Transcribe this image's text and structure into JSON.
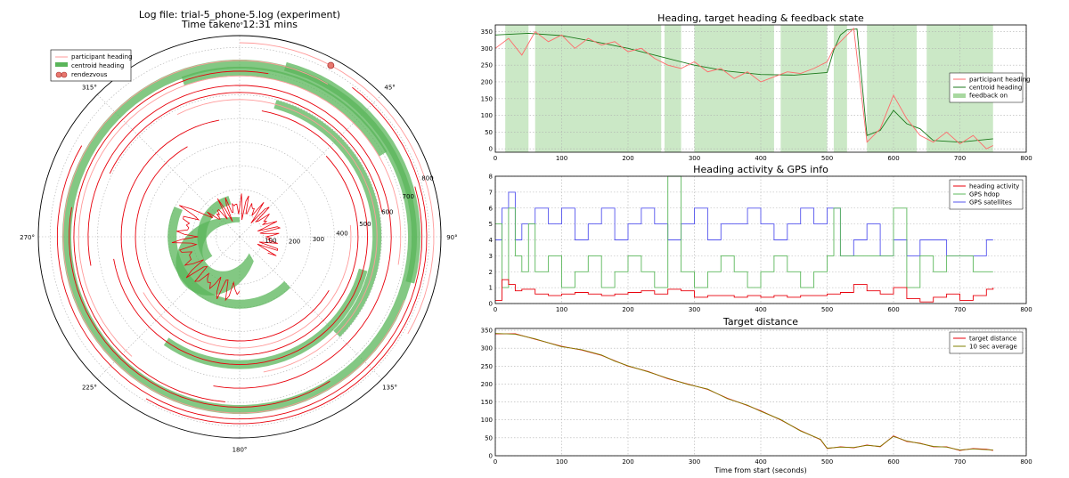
{
  "chart_data": [
    {
      "type": "polar",
      "title_line1": "Log file: trial-5_phone-5.log (experiment)",
      "title_line2": "Time taken: 12:31 mins",
      "angle_ticks": [
        "0°",
        "45°",
        "90°",
        "135°",
        "180°",
        "225°",
        "270°",
        "315°"
      ],
      "radial_ticks": [
        "100",
        "200",
        "300",
        "400",
        "500",
        "600",
        "700",
        "800"
      ],
      "rlim": [
        0,
        850
      ],
      "legend": {
        "placement": "top-left",
        "entries": [
          "participant heading",
          "centroid heading",
          "rendezvous"
        ]
      },
      "colors": {
        "participant": "#e8000b",
        "centroid": "#5ab55a",
        "rendezvous": "#e8776e"
      },
      "rendezvous": {
        "angle_deg": 28,
        "distance": 820
      },
      "centroid_band": [
        {
          "angle": 112,
          "radius": 730,
          "span": 420
        },
        {
          "angle": 60,
          "radius": 745,
          "span": 90
        },
        {
          "angle": 20,
          "radius": 700,
          "span": 80
        },
        {
          "angle": 75,
          "radius": 580,
          "span": 120
        },
        {
          "angle": 160,
          "radius": 540,
          "span": 110
        },
        {
          "angle": 215,
          "radius": 285,
          "span": 160
        },
        {
          "angle": 290,
          "radius": 160,
          "span": 110
        }
      ]
    },
    {
      "type": "line",
      "title": "Heading, target heading & feedback state",
      "xlim": [
        0,
        800
      ],
      "ylim": [
        -10,
        370
      ],
      "xticks": [
        0,
        100,
        200,
        300,
        400,
        500,
        600,
        700,
        800
      ],
      "yticks": [
        0,
        50,
        100,
        150,
        200,
        250,
        300,
        350
      ],
      "legend": {
        "placement": "right",
        "entries": [
          "participant heading",
          "centroid heading",
          "feedback on"
        ]
      },
      "series": [
        {
          "name": "centroid heading",
          "color": "#1c7a1c",
          "x": [
            0,
            50,
            100,
            150,
            200,
            250,
            300,
            350,
            400,
            450,
            500,
            510,
            520,
            530,
            540,
            545,
            560,
            580,
            600,
            620,
            640,
            660,
            700,
            740,
            750
          ],
          "y": [
            340,
            345,
            338,
            320,
            300,
            275,
            250,
            232,
            222,
            220,
            228,
            295,
            340,
            355,
            357,
            358,
            40,
            55,
            115,
            75,
            60,
            25,
            20,
            28,
            30
          ]
        },
        {
          "name": "participant heading",
          "color": "#ff6b6b",
          "x": [
            0,
            20,
            40,
            60,
            80,
            100,
            120,
            140,
            160,
            180,
            200,
            220,
            240,
            260,
            280,
            300,
            320,
            340,
            360,
            380,
            400,
            420,
            440,
            460,
            480,
            500,
            510,
            520,
            540,
            560,
            580,
            600,
            620,
            640,
            660,
            680,
            700,
            720,
            740,
            750
          ],
          "y": [
            300,
            330,
            280,
            350,
            320,
            340,
            300,
            330,
            310,
            320,
            290,
            300,
            270,
            250,
            240,
            260,
            230,
            240,
            210,
            230,
            200,
            215,
            230,
            225,
            240,
            260,
            300,
            320,
            360,
            20,
            60,
            160,
            90,
            40,
            20,
            50,
            15,
            40,
            0,
            10
          ]
        }
      ],
      "feedback_on": [
        [
          15,
          50
        ],
        [
          60,
          250
        ],
        [
          255,
          280
        ],
        [
          300,
          420
        ],
        [
          430,
          500
        ],
        [
          510,
          530
        ],
        [
          560,
          635
        ],
        [
          650,
          750
        ]
      ]
    },
    {
      "type": "line",
      "title": "Heading activity & GPS info",
      "xlim": [
        0,
        800
      ],
      "ylim": [
        0,
        8
      ],
      "xticks": [
        0,
        100,
        200,
        300,
        400,
        500,
        600,
        700,
        800
      ],
      "yticks": [
        0,
        1,
        2,
        3,
        4,
        5,
        6,
        7,
        8
      ],
      "legend": {
        "placement": "top-right",
        "entries": [
          "heading activity",
          "GPS hdop",
          "GPS satellites"
        ]
      },
      "series": [
        {
          "name": "GPS satellites",
          "color": "#5555ee",
          "x": [
            0,
            10,
            20,
            30,
            40,
            60,
            80,
            100,
            120,
            140,
            160,
            180,
            200,
            220,
            240,
            260,
            280,
            300,
            320,
            340,
            360,
            380,
            400,
            420,
            440,
            460,
            480,
            500,
            520,
            540,
            560,
            580,
            600,
            620,
            640,
            660,
            680,
            700,
            720,
            740,
            750
          ],
          "y": [
            4,
            6,
            7,
            4,
            5,
            6,
            5,
            6,
            4,
            5,
            6,
            4,
            5,
            6,
            5,
            4,
            5,
            6,
            4,
            5,
            5,
            6,
            5,
            4,
            5,
            6,
            5,
            6,
            3,
            4,
            5,
            3,
            4,
            3,
            4,
            4,
            3,
            3,
            3,
            4,
            4
          ]
        },
        {
          "name": "GPS hdop",
          "color": "#5cb85c",
          "x": [
            0,
            10,
            20,
            30,
            40,
            50,
            60,
            80,
            100,
            120,
            140,
            160,
            180,
            200,
            220,
            240,
            260,
            280,
            300,
            320,
            340,
            360,
            380,
            400,
            420,
            440,
            460,
            480,
            500,
            510,
            520,
            540,
            560,
            580,
            600,
            620,
            640,
            660,
            680,
            700,
            720,
            740,
            750
          ],
          "y": [
            5,
            1,
            6,
            3,
            2,
            5,
            2,
            3,
            1,
            2,
            3,
            1,
            2,
            3,
            2,
            1,
            8,
            2,
            1,
            2,
            3,
            2,
            1,
            2,
            3,
            2,
            1,
            2,
            3,
            6,
            3,
            3,
            3,
            3,
            6,
            1,
            3,
            2,
            3,
            3,
            2,
            2,
            2
          ]
        },
        {
          "name": "heading activity",
          "color": "#e8000b",
          "x": [
            0,
            10,
            20,
            30,
            40,
            60,
            80,
            100,
            120,
            140,
            160,
            180,
            200,
            220,
            240,
            260,
            280,
            300,
            320,
            340,
            360,
            380,
            400,
            420,
            440,
            460,
            480,
            500,
            520,
            540,
            560,
            580,
            600,
            620,
            640,
            660,
            680,
            700,
            720,
            740,
            750
          ],
          "y": [
            0.2,
            1.5,
            1.2,
            0.8,
            0.9,
            0.6,
            0.5,
            0.6,
            0.7,
            0.6,
            0.5,
            0.6,
            0.7,
            0.8,
            0.6,
            0.9,
            0.8,
            0.4,
            0.5,
            0.5,
            0.4,
            0.5,
            0.4,
            0.5,
            0.4,
            0.5,
            0.5,
            0.6,
            0.7,
            1.2,
            0.8,
            0.6,
            1.0,
            0.3,
            0.1,
            0.4,
            0.6,
            0.2,
            0.5,
            0.9,
            1.0
          ]
        }
      ]
    },
    {
      "type": "line",
      "title": "Target distance",
      "xlabel": "Time from start (seconds)",
      "xlim": [
        0,
        800
      ],
      "ylim": [
        0,
        355
      ],
      "xticks": [
        0,
        100,
        200,
        300,
        400,
        500,
        600,
        700,
        800
      ],
      "yticks": [
        0,
        50,
        100,
        150,
        200,
        250,
        300,
        350
      ],
      "legend": {
        "placement": "top-right",
        "entries": [
          "target distance",
          "10 sec average"
        ]
      },
      "series": [
        {
          "name": "target distance",
          "color": "#e8000b",
          "x": [
            0,
            30,
            60,
            100,
            130,
            160,
            180,
            200,
            230,
            260,
            290,
            320,
            350,
            380,
            400,
            430,
            460,
            490,
            500,
            520,
            540,
            560,
            580,
            600,
            620,
            640,
            660,
            680,
            700,
            720,
            740,
            750
          ],
          "y": [
            340,
            340,
            325,
            305,
            295,
            280,
            265,
            250,
            235,
            215,
            200,
            185,
            160,
            140,
            125,
            100,
            70,
            45,
            20,
            25,
            22,
            30,
            25,
            55,
            40,
            35,
            25,
            25,
            15,
            20,
            18,
            15
          ]
        },
        {
          "name": "10 sec average",
          "color": "#808000",
          "x": [
            0,
            30,
            60,
            100,
            130,
            160,
            180,
            200,
            230,
            260,
            290,
            320,
            350,
            380,
            400,
            430,
            460,
            490,
            500,
            520,
            540,
            560,
            580,
            600,
            620,
            640,
            660,
            680,
            700,
            720,
            740,
            750
          ],
          "y": [
            341,
            339,
            326,
            304,
            296,
            281,
            264,
            251,
            234,
            216,
            199,
            186,
            159,
            141,
            124,
            101,
            69,
            46,
            21,
            24,
            23,
            29,
            26,
            54,
            41,
            34,
            26,
            24,
            16,
            19,
            17,
            16
          ]
        }
      ]
    }
  ]
}
